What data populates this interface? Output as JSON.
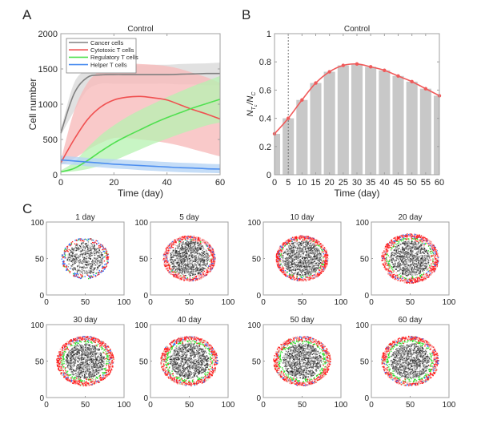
{
  "panel_labels": {
    "a": "A",
    "b": "B",
    "c": "C"
  },
  "chart_data": [
    {
      "id": "A",
      "type": "line",
      "title": "Control",
      "xlabel": "Time (day)",
      "ylabel": "Cell number",
      "xlim": [
        0,
        60
      ],
      "ylim": [
        0,
        2000
      ],
      "xticks": [
        0,
        20,
        40,
        60
      ],
      "yticks": [
        0,
        500,
        1000,
        1500,
        2000
      ],
      "legend": {
        "placement": "top-left",
        "entries": [
          "Cancer cells",
          "Cytotoxic T cells",
          "Regulatory T cells",
          "Helper T cells"
        ]
      },
      "x": [
        0,
        5,
        10,
        15,
        20,
        25,
        30,
        35,
        40,
        45,
        50,
        55,
        60
      ],
      "series": [
        {
          "name": "Cancer cells",
          "color": "#808080",
          "band_color": "#d9d9d9",
          "values": [
            590,
            1150,
            1380,
            1415,
            1420,
            1420,
            1420,
            1420,
            1420,
            1425,
            1430,
            1435,
            1435
          ],
          "upper": [
            640,
            1300,
            1490,
            1530,
            1540,
            1550,
            1555,
            1560,
            1560,
            1570,
            1575,
            1580,
            1590
          ],
          "lower": [
            560,
            900,
            1200,
            1290,
            1290,
            1290,
            1290,
            1290,
            1290,
            1280,
            1280,
            1270,
            1270
          ]
        },
        {
          "name": "Cytotoxic T cells",
          "color": "#f05050",
          "band_color": "#f7bcbc",
          "values": [
            170,
            500,
            780,
            960,
            1060,
            1100,
            1110,
            1090,
            1060,
            990,
            920,
            860,
            790
          ],
          "upper": [
            200,
            900,
            1300,
            1480,
            1560,
            1580,
            1570,
            1560,
            1540,
            1500,
            1440,
            1380,
            1300
          ],
          "lower": [
            140,
            230,
            350,
            450,
            520,
            520,
            500,
            480,
            450,
            410,
            360,
            310,
            260
          ]
        },
        {
          "name": "Regulatory T cells",
          "color": "#50e050",
          "band_color": "#b5f2b0",
          "values": [
            40,
            90,
            200,
            330,
            450,
            550,
            640,
            730,
            810,
            880,
            950,
            1010,
            1070
          ],
          "upper": [
            60,
            180,
            380,
            560,
            700,
            820,
            920,
            1010,
            1100,
            1180,
            1260,
            1330,
            1400
          ],
          "lower": [
            30,
            50,
            80,
            130,
            200,
            280,
            360,
            440,
            510,
            580,
            640,
            700,
            740
          ]
        },
        {
          "name": "Helper T cells",
          "color": "#4d8ff0",
          "band_color": "#b7d4f5",
          "values": [
            210,
            195,
            180,
            165,
            150,
            140,
            130,
            120,
            110,
            100,
            95,
            85,
            80
          ],
          "upper": [
            270,
            255,
            240,
            230,
            220,
            210,
            200,
            190,
            180,
            170,
            165,
            155,
            150
          ],
          "lower": [
            150,
            140,
            120,
            105,
            90,
            80,
            65,
            55,
            45,
            35,
            30,
            25,
            20
          ]
        }
      ]
    },
    {
      "id": "B",
      "type": "bar",
      "title": "Control",
      "xlabel": "Time (day)",
      "ylabel": "N_{T_c}/N_C",
      "xlim": [
        0,
        60
      ],
      "ylim": [
        0,
        1
      ],
      "xticks": [
        0,
        5,
        10,
        15,
        20,
        25,
        30,
        35,
        40,
        45,
        50,
        55,
        60
      ],
      "yticks": [
        0,
        0.2,
        0.4,
        0.6,
        0.8,
        1
      ],
      "categories": [
        0,
        5,
        10,
        15,
        20,
        25,
        30,
        35,
        40,
        45,
        50,
        55,
        60
      ],
      "values": [
        0.29,
        0.4,
        0.53,
        0.65,
        0.73,
        0.775,
        0.785,
        0.765,
        0.74,
        0.7,
        0.66,
        0.61,
        0.56
      ],
      "bar_color": "#c8c8c8",
      "line": {
        "color": "#f05a5a",
        "values": [
          0.29,
          0.4,
          0.53,
          0.65,
          0.73,
          0.775,
          0.785,
          0.765,
          0.74,
          0.7,
          0.66,
          0.61,
          0.56
        ]
      },
      "vline_x": 5
    },
    {
      "id": "C",
      "type": "scatter",
      "xlim": [
        0,
        100
      ],
      "ylim": [
        0,
        100
      ],
      "xticks": [
        0,
        50,
        100
      ],
      "yticks": [
        0,
        50,
        100
      ],
      "panels": [
        {
          "title": "1 day",
          "green_ring": 0.0,
          "red_outer": 0.15
        },
        {
          "title": "5 day",
          "green_ring": 0.15,
          "red_outer": 0.5
        },
        {
          "title": "10 day",
          "green_ring": 0.35,
          "red_outer": 0.7
        },
        {
          "title": "20 day",
          "green_ring": 0.55,
          "red_outer": 0.8
        },
        {
          "title": "30 day",
          "green_ring": 0.75,
          "red_outer": 0.85
        },
        {
          "title": "40 day",
          "green_ring": 0.8,
          "red_outer": 0.85
        },
        {
          "title": "50 day",
          "green_ring": 0.85,
          "red_outer": 0.8
        },
        {
          "title": "60 day",
          "green_ring": 0.9,
          "red_outer": 0.75
        }
      ],
      "colors": {
        "cancer": "#505050",
        "cytotoxic": "#ff2020",
        "regulatory": "#30e030",
        "helper": "#3070ff",
        "cytotoxic_light": "#f8b0b0",
        "regulatory_light": "#c0f5b8"
      }
    }
  ]
}
